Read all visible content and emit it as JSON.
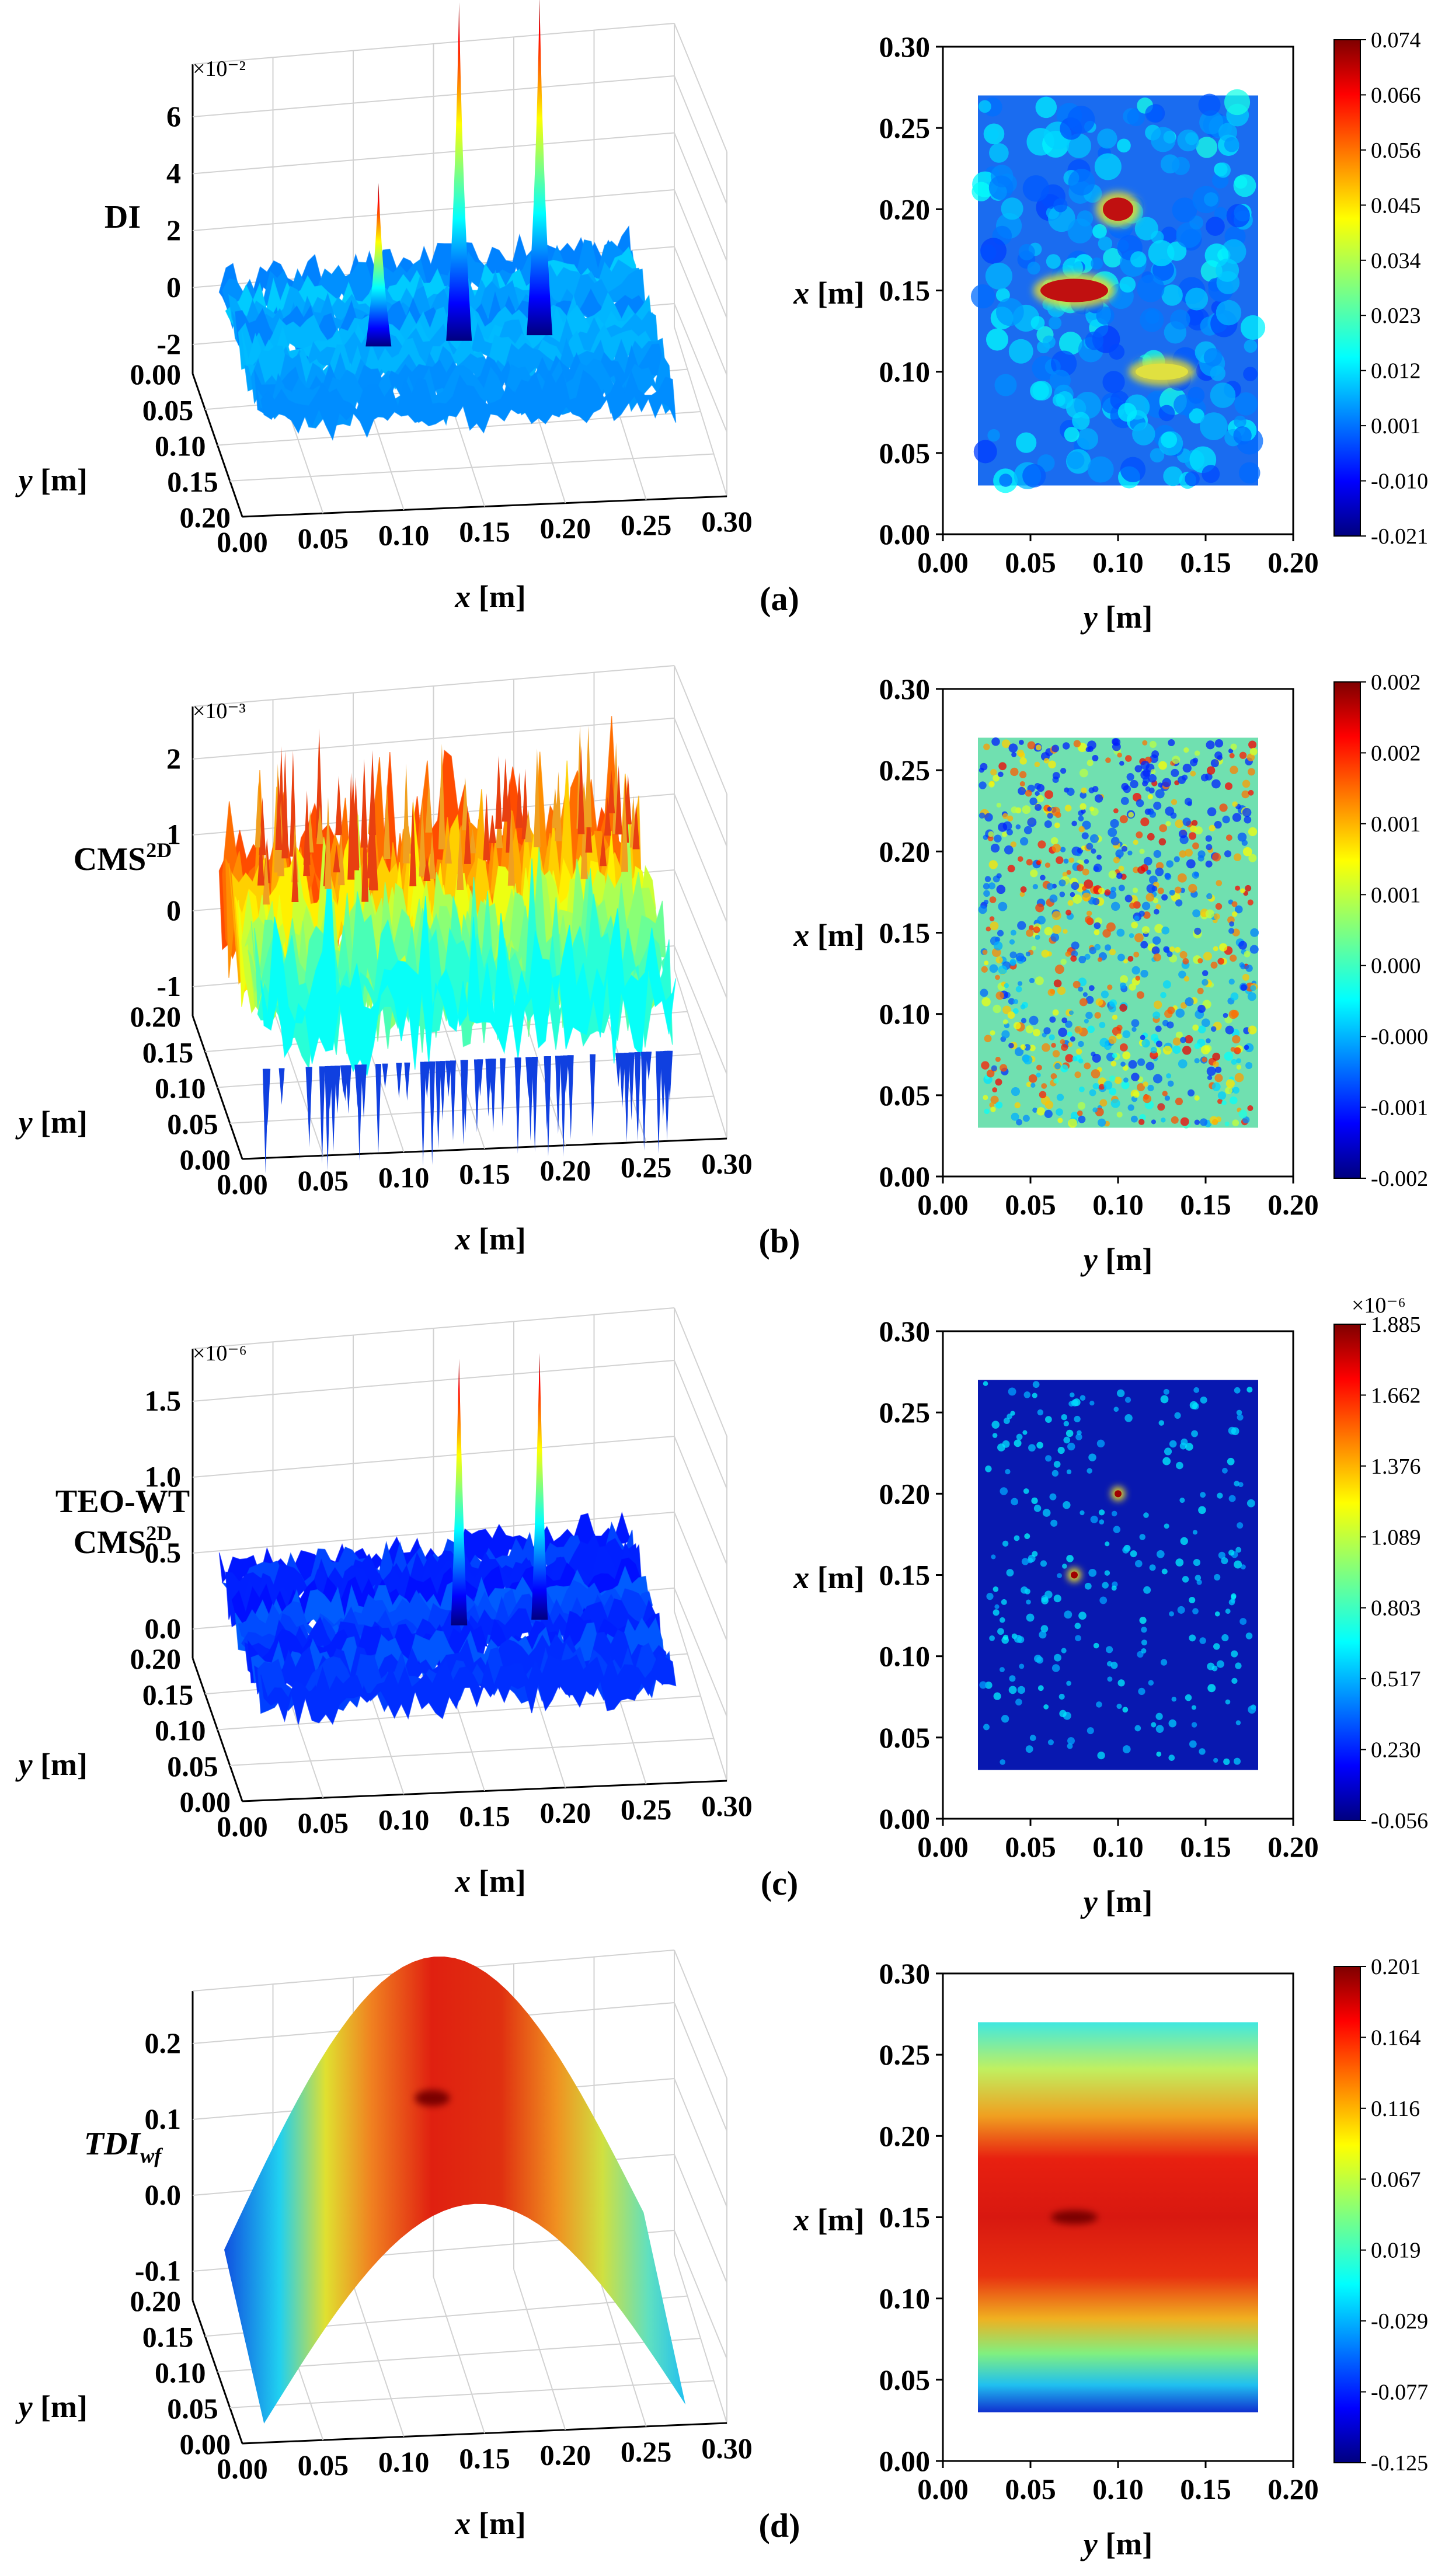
{
  "chart_data": [
    {
      "id": "a",
      "label": "(a)",
      "type": "surface3d+heatmap",
      "surface_type": "noise_peaks",
      "zlabel": "DI",
      "zscale": "×10⁻²",
      "zticks": [
        "6",
        "4",
        "2",
        "0",
        "-2"
      ],
      "x_ticks": [
        "0.00",
        "0.05",
        "0.10",
        "0.15",
        "0.20",
        "0.25",
        "0.30"
      ],
      "y_ticks": [
        "0.00",
        "0.05",
        "0.10",
        "0.15",
        "0.20"
      ],
      "xlabel_3d": "x [m]",
      "ylabel_3d": "y [m]",
      "heat_ylabel": "x [m]",
      "heat_xlabel": "y [m]",
      "heat_yticks": [
        "0.30",
        "0.25",
        "0.20",
        "0.15",
        "0.10",
        "0.05",
        "0.00"
      ],
      "heat_xticks": [
        "0.00",
        "0.05",
        "0.10",
        "0.15",
        "0.20"
      ],
      "heat_extent": {
        "y": [
          0.02,
          0.18
        ],
        "x": [
          0.03,
          0.27
        ]
      },
      "colorbar_scale": "",
      "colorbar_ticks": [
        "0.074",
        "0.066",
        "0.056",
        "0.045",
        "0.034",
        "0.023",
        "0.012",
        "0.001",
        "-0.010",
        "-0.021"
      ],
      "peaks": [
        {
          "x": 0.2,
          "y": 0.1
        },
        {
          "x": 0.15,
          "y": 0.075
        },
        {
          "x": 0.1,
          "y": 0.125
        }
      ]
    },
    {
      "id": "b",
      "label": "(b)",
      "type": "surface3d+heatmap",
      "surface_type": "spiky",
      "zlabel": "CMS",
      "zlabel_sup": "2D",
      "zscale": "×10⁻³",
      "zticks": [
        "2",
        "1",
        "0",
        "-1"
      ],
      "x_ticks": [
        "0.00",
        "0.05",
        "0.10",
        "0.15",
        "0.20",
        "0.25",
        "0.30"
      ],
      "y_ticks": [
        "0.20",
        "0.15",
        "0.10",
        "0.05",
        "0.00"
      ],
      "xlabel_3d": "x [m]",
      "ylabel_3d": "y [m]",
      "heat_ylabel": "x [m]",
      "heat_xlabel": "y [m]",
      "heat_yticks": [
        "0.30",
        "0.25",
        "0.20",
        "0.15",
        "0.10",
        "0.05",
        "0.00"
      ],
      "heat_xticks": [
        "0.00",
        "0.05",
        "0.10",
        "0.15",
        "0.20"
      ],
      "heat_extent": {
        "y": [
          0.02,
          0.18
        ],
        "x": [
          0.03,
          0.27
        ]
      },
      "colorbar_scale": "",
      "colorbar_ticks": [
        "0.002",
        "0.002",
        "0.001",
        "0.001",
        "0.000",
        "-0.000",
        "-0.001",
        "-0.002"
      ]
    },
    {
      "id": "c",
      "label": "(c)",
      "type": "surface3d+heatmap",
      "surface_type": "sparse_peaks",
      "zlabel": "TEO-WT",
      "zlabel2": "CMS",
      "zlabel2_sup": "2D",
      "zscale": "×10⁻⁶",
      "zticks": [
        "1.5",
        "1.0",
        "0.5",
        "0.0"
      ],
      "x_ticks": [
        "0.00",
        "0.05",
        "0.10",
        "0.15",
        "0.20",
        "0.25",
        "0.30"
      ],
      "y_ticks": [
        "0.20",
        "0.15",
        "0.10",
        "0.05",
        "0.00"
      ],
      "xlabel_3d": "x [m]",
      "ylabel_3d": "y [m]",
      "heat_ylabel": "x [m]",
      "heat_xlabel": "y [m]",
      "heat_yticks": [
        "0.30",
        "0.25",
        "0.20",
        "0.15",
        "0.10",
        "0.05",
        "0.00"
      ],
      "heat_xticks": [
        "0.00",
        "0.05",
        "0.10",
        "0.15",
        "0.20"
      ],
      "heat_extent": {
        "y": [
          0.02,
          0.18
        ],
        "x": [
          0.03,
          0.27
        ]
      },
      "colorbar_scale": "×10⁻⁶",
      "colorbar_ticks": [
        "1.885",
        "1.662",
        "1.376",
        "1.089",
        "0.803",
        "0.517",
        "0.230",
        "-0.056"
      ],
      "peaks": [
        {
          "x": 0.2,
          "y": 0.1
        },
        {
          "x": 0.15,
          "y": 0.075
        }
      ]
    },
    {
      "id": "d",
      "label": "(d)",
      "type": "surface3d+heatmap",
      "surface_type": "dome",
      "zlabel": "TDI",
      "zlabel_sub": "wf",
      "zscale": "",
      "zticks": [
        "0.2",
        "0.1",
        "0.0",
        "-0.1"
      ],
      "x_ticks": [
        "0.00",
        "0.05",
        "0.10",
        "0.15",
        "0.20",
        "0.25",
        "0.30"
      ],
      "y_ticks": [
        "0.20",
        "0.15",
        "0.10",
        "0.05",
        "0.00"
      ],
      "xlabel_3d": "x [m]",
      "ylabel_3d": "y [m]",
      "heat_ylabel": "x [m]",
      "heat_xlabel": "y [m]",
      "heat_yticks": [
        "0.30",
        "0.25",
        "0.20",
        "0.15",
        "0.10",
        "0.05",
        "0.00"
      ],
      "heat_xticks": [
        "0.00",
        "0.05",
        "0.10",
        "0.15",
        "0.20"
      ],
      "heat_extent": {
        "y": [
          0.02,
          0.18
        ],
        "x": [
          0.03,
          0.27
        ]
      },
      "colorbar_scale": "",
      "colorbar_ticks": [
        "0.201",
        "0.164",
        "0.116",
        "0.067",
        "0.019",
        "-0.029",
        "-0.077",
        "-0.125"
      ]
    }
  ]
}
